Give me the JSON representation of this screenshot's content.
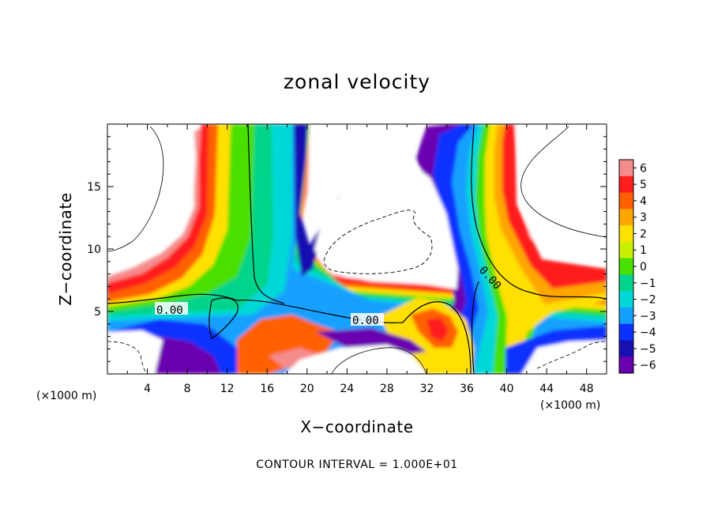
{
  "chart_data": {
    "type": "heatmap",
    "title": "zonal velocity",
    "xlabel": "X−coordinate",
    "ylabel": "Z−coordinate",
    "x_unit_label": "(×1000 m)",
    "x_ticks": [
      4,
      8,
      12,
      16,
      20,
      24,
      28,
      32,
      36,
      40,
      44,
      48
    ],
    "y_ticks": [
      5,
      10,
      15
    ],
    "xlim": [
      0,
      50
    ],
    "ylim": [
      0,
      20
    ],
    "colorbar": {
      "ticks": [
        "6",
        "5",
        "4",
        "3",
        "2",
        "1",
        "0",
        "−1",
        "−2",
        "−3",
        "−4",
        "−5",
        "−6"
      ],
      "range": [
        -6,
        6
      ],
      "colors": [
        "#f58c8c",
        "#ff1e1e",
        "#ff6000",
        "#ffa500",
        "#ffe000",
        "#c8f000",
        "#48e000",
        "#00d48a",
        "#00d8d8",
        "#14a0ff",
        "#0a32ff",
        "#1810b0",
        "#6a00b0"
      ]
    },
    "contour_labels": [
      "0.00",
      "0.00",
      "0.00"
    ],
    "note": "CONTOUR INTERVAL = 1.000E+01"
  }
}
